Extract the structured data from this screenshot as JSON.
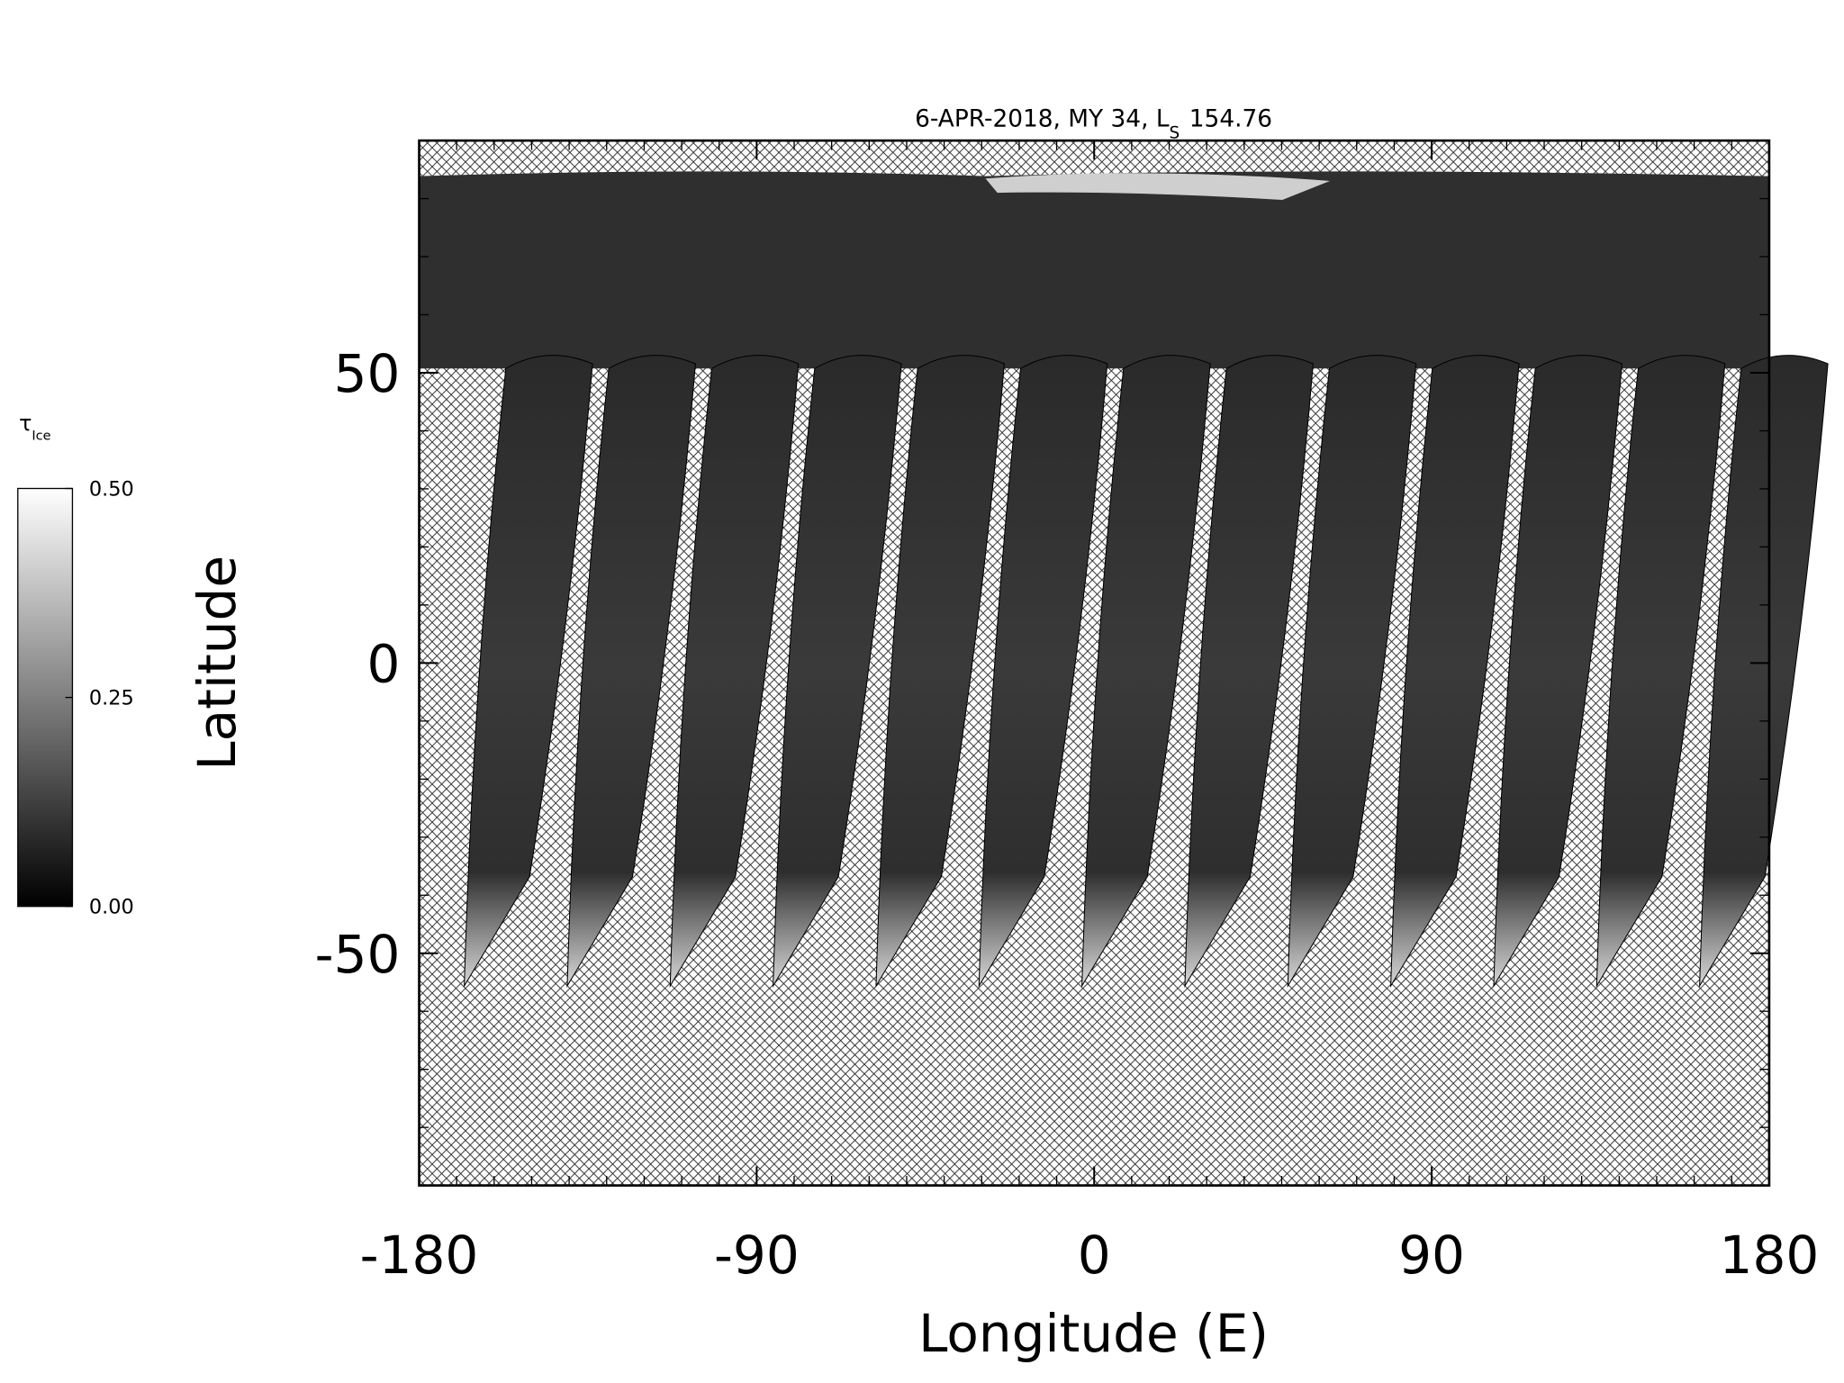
{
  "chart_data": {
    "type": "map",
    "title": {
      "text": "6-APR-2018, MY 34,  L",
      "sub": "S",
      "value": "154.76"
    },
    "xlabel": "Longitude (E)",
    "ylabel": "Latitude",
    "xlim": [
      -180,
      180
    ],
    "ylim": [
      -90,
      90
    ],
    "xticks": [
      -180,
      -90,
      0,
      90,
      180
    ],
    "yticks": [
      -50,
      0,
      50
    ],
    "xminorticks": [
      -170,
      -160,
      -150,
      -140,
      -130,
      -120,
      -110,
      -100,
      -80,
      -70,
      -60,
      -50,
      -40,
      -30,
      -20,
      -10,
      10,
      20,
      30,
      40,
      50,
      60,
      70,
      80,
      100,
      110,
      120,
      130,
      140,
      150,
      160,
      170
    ],
    "yminorticks": [
      -80,
      -70,
      -60,
      -40,
      -30,
      -20,
      -10,
      10,
      20,
      30,
      40,
      60,
      70,
      80
    ],
    "colorbar": {
      "label": "τ",
      "label_sub": "Ice",
      "lim": [
        0,
        0.5
      ],
      "ticks": [
        {
          "value": 0,
          "label": "0.00"
        },
        {
          "value": 0.25,
          "label": "0.25"
        },
        {
          "value": 0.5,
          "label": "0.50"
        }
      ]
    }
  }
}
